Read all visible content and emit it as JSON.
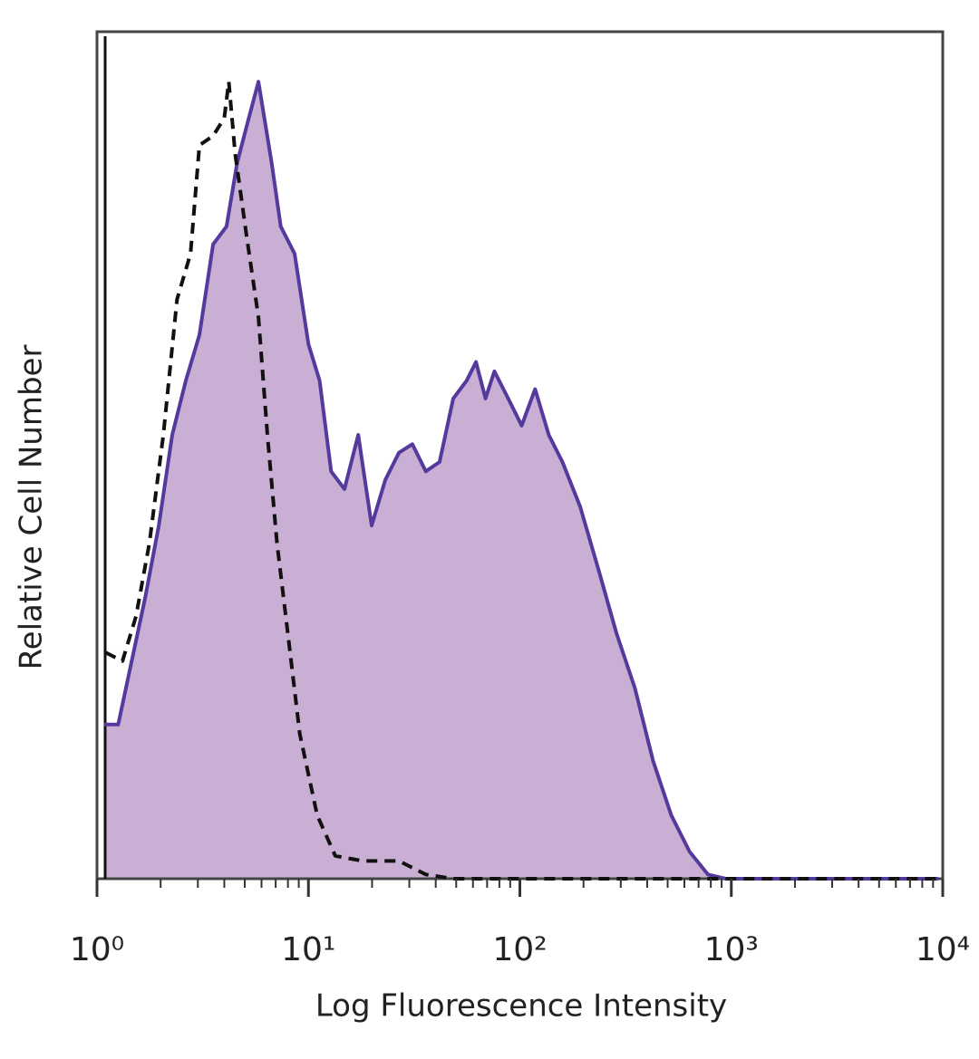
{
  "chart_data": {
    "type": "histogram-overlay",
    "x_label": "Log Fluorescence Intensity",
    "y_label": "Relative Cell Number",
    "xscale": "log",
    "xlim": [
      1,
      10000
    ],
    "ylim": [
      0,
      100
    ],
    "xticks": [
      {
        "value": 1,
        "label": "10⁰"
      },
      {
        "value": 10,
        "label": "10¹"
      },
      {
        "value": 100,
        "label": "10²"
      },
      {
        "value": 1000,
        "label": "10³"
      },
      {
        "value": 10000,
        "label": "10⁴"
      }
    ],
    "xminorticks": [
      2,
      3,
      4,
      5,
      6,
      7,
      8,
      9,
      20,
      30,
      40,
      50,
      60,
      70,
      80,
      90,
      200,
      300,
      400,
      500,
      600,
      700,
      800,
      900,
      2000,
      3000,
      4000,
      5000,
      6000,
      7000,
      8000,
      9000
    ],
    "series": [
      {
        "style": "filled",
        "color": "#553a9e",
        "fill": "#c9afd3",
        "x": [
          1.08,
          1.26,
          1.46,
          1.69,
          1.96,
          2.27,
          2.63,
          3.05,
          3.54,
          4.1,
          4.6,
          5.1,
          5.8,
          6.7,
          7.4,
          8.6,
          10,
          11.3,
          12.8,
          14.8,
          17.2,
          19.9,
          23.1,
          26.8,
          31,
          35.9,
          41.7,
          48.4,
          56,
          62,
          68.8,
          75.8,
          88,
          102,
          118,
          137,
          159,
          193,
          236,
          287,
          350,
          427,
          520,
          635,
          775,
          940,
          9500
        ],
        "values": [
          18.2,
          18.2,
          25.7,
          33.2,
          41.7,
          52.4,
          58.8,
          64.2,
          74.9,
          77,
          84.5,
          88.8,
          94.1,
          84.5,
          77,
          73.8,
          63.1,
          58.8,
          48.1,
          46,
          52.4,
          41.7,
          47.1,
          50.3,
          51.3,
          48.1,
          49.2,
          56.7,
          58.8,
          61,
          56.7,
          59.9,
          56.7,
          53.5,
          57.8,
          52.4,
          49.2,
          43.9,
          36.4,
          28.9,
          22.5,
          13.9,
          7.5,
          3.2,
          0.5,
          0,
          0
        ]
      },
      {
        "style": "dashed",
        "color": "#111111",
        "x": [
          1.1,
          1.32,
          1.53,
          1.77,
          2.06,
          2.39,
          2.77,
          3.05,
          3.54,
          4.0,
          4.2,
          4.5,
          5.1,
          5.8,
          6.4,
          7.1,
          8.0,
          9.1,
          11.0,
          13.4,
          18.1,
          26.8,
          35.9,
          48.4,
          9500
        ],
        "values": [
          26.7,
          25.7,
          31,
          39.6,
          52.4,
          68.4,
          73.8,
          86.6,
          87.7,
          89.8,
          94.1,
          85.6,
          75.9,
          66.3,
          52.4,
          39.6,
          28.9,
          17.1,
          7.5,
          2.7,
          2.1,
          2.1,
          0.5,
          0,
          0
        ]
      }
    ]
  }
}
